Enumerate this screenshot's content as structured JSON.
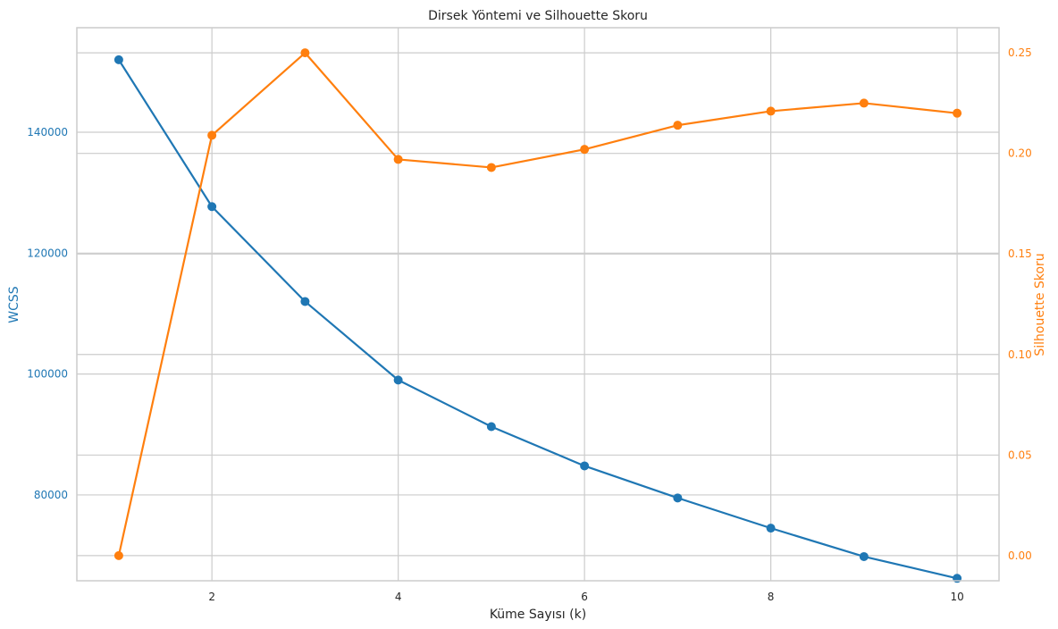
{
  "chart_data": {
    "type": "line",
    "title": "Dirsek Yöntemi ve Silhouette Skoru",
    "xlabel": "Küme Sayısı (k)",
    "ylabel_left": "WCSS",
    "ylabel_right": "Silhouette Skoru",
    "x": [
      1,
      2,
      3,
      4,
      5,
      6,
      7,
      8,
      9,
      10
    ],
    "xlim": [
      0.55,
      10.45
    ],
    "xticks": [
      2,
      4,
      6,
      8,
      10
    ],
    "grid": true,
    "left_axis": {
      "ylim": [
        65800,
        157300
      ],
      "ticks": [
        80000,
        100000,
        120000,
        140000
      ],
      "tick_labels": [
        "80000",
        "100000",
        "120000",
        "140000"
      ],
      "color": "#1f77b4"
    },
    "right_axis": {
      "ylim": [
        -0.0125,
        0.2625
      ],
      "ticks": [
        0.0,
        0.05,
        0.1,
        0.15,
        0.2,
        0.25
      ],
      "tick_labels": [
        "0.00",
        "0.05",
        "0.10",
        "0.15",
        "0.20",
        "0.25"
      ],
      "color": "#ff7f0e"
    },
    "series": [
      {
        "name": "WCSS",
        "axis": "left",
        "color": "#1f77b4",
        "values": [
          152000,
          127700,
          112000,
          99000,
          91300,
          84800,
          79500,
          74500,
          69800,
          66200
        ]
      },
      {
        "name": "Silhouette Skoru",
        "axis": "right",
        "color": "#ff7f0e",
        "values": [
          0.0,
          0.209,
          0.25,
          0.197,
          0.193,
          0.202,
          0.214,
          0.221,
          0.225,
          0.22
        ]
      }
    ]
  }
}
